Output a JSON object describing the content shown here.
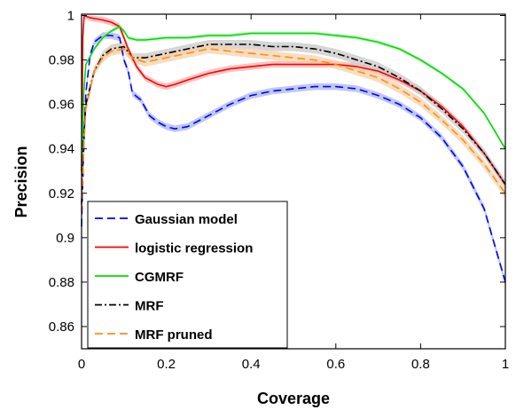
{
  "chart_data": {
    "type": "line",
    "title": "",
    "xlabel": "Coverage",
    "ylabel": "Precision",
    "xlim": [
      0,
      1
    ],
    "ylim": [
      0.85,
      1.0
    ],
    "xticks": [
      "0",
      "0.2",
      "0.4",
      "0.6",
      "0.8",
      "1"
    ],
    "yticks": [
      "0.86",
      "0.88",
      "0.9",
      "0.92",
      "0.94",
      "0.96",
      "0.98",
      "1"
    ],
    "grid": false,
    "legend_position": "bottom-left",
    "series": [
      {
        "name": "Gaussian model",
        "color": "#0000ff",
        "band_color": "#aab4f0",
        "style": "dashed",
        "band": 0.0015,
        "points": [
          [
            0,
            0.905
          ],
          [
            0.005,
            0.94
          ],
          [
            0.01,
            0.965
          ],
          [
            0.02,
            0.982
          ],
          [
            0.03,
            0.988
          ],
          [
            0.05,
            0.991
          ],
          [
            0.07,
            0.991
          ],
          [
            0.09,
            0.99
          ],
          [
            0.1,
            0.98
          ],
          [
            0.11,
            0.975
          ],
          [
            0.12,
            0.965
          ],
          [
            0.14,
            0.962
          ],
          [
            0.16,
            0.955
          ],
          [
            0.18,
            0.952
          ],
          [
            0.2,
            0.95
          ],
          [
            0.22,
            0.949
          ],
          [
            0.25,
            0.95
          ],
          [
            0.3,
            0.955
          ],
          [
            0.35,
            0.96
          ],
          [
            0.4,
            0.964
          ],
          [
            0.45,
            0.966
          ],
          [
            0.5,
            0.967
          ],
          [
            0.55,
            0.968
          ],
          [
            0.6,
            0.968
          ],
          [
            0.65,
            0.967
          ],
          [
            0.7,
            0.964
          ],
          [
            0.75,
            0.96
          ],
          [
            0.8,
            0.954
          ],
          [
            0.85,
            0.945
          ],
          [
            0.9,
            0.932
          ],
          [
            0.95,
            0.913
          ],
          [
            1.0,
            0.88
          ]
        ]
      },
      {
        "name": "logistic regression",
        "color": "#ff0000",
        "band_color": "#f5b0b0",
        "style": "solid",
        "band": 0.0015,
        "points": [
          [
            0,
            0.93
          ],
          [
            0.003,
            0.99
          ],
          [
            0.006,
            1.0
          ],
          [
            0.02,
            0.999
          ],
          [
            0.05,
            0.998
          ],
          [
            0.07,
            0.997
          ],
          [
            0.09,
            0.995
          ],
          [
            0.1,
            0.99
          ],
          [
            0.11,
            0.985
          ],
          [
            0.13,
            0.977
          ],
          [
            0.15,
            0.972
          ],
          [
            0.18,
            0.969
          ],
          [
            0.2,
            0.968
          ],
          [
            0.22,
            0.969
          ],
          [
            0.25,
            0.971
          ],
          [
            0.3,
            0.974
          ],
          [
            0.35,
            0.976
          ],
          [
            0.4,
            0.977
          ],
          [
            0.45,
            0.978
          ],
          [
            0.5,
            0.978
          ],
          [
            0.55,
            0.978
          ],
          [
            0.6,
            0.978
          ],
          [
            0.65,
            0.977
          ],
          [
            0.7,
            0.975
          ],
          [
            0.75,
            0.971
          ],
          [
            0.8,
            0.966
          ],
          [
            0.85,
            0.959
          ],
          [
            0.9,
            0.95
          ],
          [
            0.95,
            0.938
          ],
          [
            1.0,
            0.924
          ]
        ]
      },
      {
        "name": "CGMRF",
        "color": "#00dd00",
        "band_color": "#b0f0b0",
        "style": "solid",
        "band": 0.0008,
        "points": [
          [
            0,
            0.93
          ],
          [
            0.005,
            0.965
          ],
          [
            0.01,
            0.978
          ],
          [
            0.03,
            0.985
          ],
          [
            0.05,
            0.99
          ],
          [
            0.07,
            0.993
          ],
          [
            0.09,
            0.995
          ],
          [
            0.1,
            0.993
          ],
          [
            0.11,
            0.99
          ],
          [
            0.13,
            0.989
          ],
          [
            0.15,
            0.989
          ],
          [
            0.2,
            0.99
          ],
          [
            0.25,
            0.99
          ],
          [
            0.3,
            0.991
          ],
          [
            0.35,
            0.991
          ],
          [
            0.4,
            0.992
          ],
          [
            0.45,
            0.992
          ],
          [
            0.5,
            0.992
          ],
          [
            0.55,
            0.992
          ],
          [
            0.6,
            0.991
          ],
          [
            0.65,
            0.99
          ],
          [
            0.7,
            0.988
          ],
          [
            0.75,
            0.985
          ],
          [
            0.8,
            0.98
          ],
          [
            0.85,
            0.974
          ],
          [
            0.9,
            0.967
          ],
          [
            0.95,
            0.956
          ],
          [
            1.0,
            0.94
          ]
        ]
      },
      {
        "name": "MRF",
        "color": "#000000",
        "band_color": "#c8c8c8",
        "style": "dashdot",
        "band": 0.002,
        "points": [
          [
            0,
            0.915
          ],
          [
            0.005,
            0.945
          ],
          [
            0.01,
            0.96
          ],
          [
            0.03,
            0.975
          ],
          [
            0.05,
            0.982
          ],
          [
            0.07,
            0.985
          ],
          [
            0.1,
            0.986
          ],
          [
            0.12,
            0.981
          ],
          [
            0.15,
            0.981
          ],
          [
            0.2,
            0.983
          ],
          [
            0.25,
            0.985
          ],
          [
            0.3,
            0.987
          ],
          [
            0.35,
            0.987
          ],
          [
            0.4,
            0.987
          ],
          [
            0.45,
            0.986
          ],
          [
            0.5,
            0.986
          ],
          [
            0.55,
            0.985
          ],
          [
            0.6,
            0.983
          ],
          [
            0.65,
            0.98
          ],
          [
            0.7,
            0.977
          ],
          [
            0.75,
            0.972
          ],
          [
            0.8,
            0.966
          ],
          [
            0.85,
            0.958
          ],
          [
            0.9,
            0.949
          ],
          [
            0.95,
            0.938
          ],
          [
            1.0,
            0.924
          ]
        ]
      },
      {
        "name": "MRF pruned",
        "color": "#ff8c1a",
        "band_color": "#f5d2a8",
        "style": "dashed",
        "band": 0.002,
        "points": [
          [
            0,
            0.912
          ],
          [
            0.005,
            0.94
          ],
          [
            0.01,
            0.958
          ],
          [
            0.03,
            0.975
          ],
          [
            0.05,
            0.981
          ],
          [
            0.07,
            0.984
          ],
          [
            0.1,
            0.985
          ],
          [
            0.12,
            0.981
          ],
          [
            0.15,
            0.979
          ],
          [
            0.2,
            0.981
          ],
          [
            0.25,
            0.983
          ],
          [
            0.3,
            0.985
          ],
          [
            0.35,
            0.984
          ],
          [
            0.4,
            0.983
          ],
          [
            0.45,
            0.982
          ],
          [
            0.5,
            0.981
          ],
          [
            0.55,
            0.98
          ],
          [
            0.6,
            0.978
          ],
          [
            0.65,
            0.975
          ],
          [
            0.7,
            0.972
          ],
          [
            0.75,
            0.967
          ],
          [
            0.8,
            0.961
          ],
          [
            0.85,
            0.953
          ],
          [
            0.9,
            0.944
          ],
          [
            0.95,
            0.933
          ],
          [
            1.0,
            0.92
          ]
        ]
      }
    ]
  }
}
